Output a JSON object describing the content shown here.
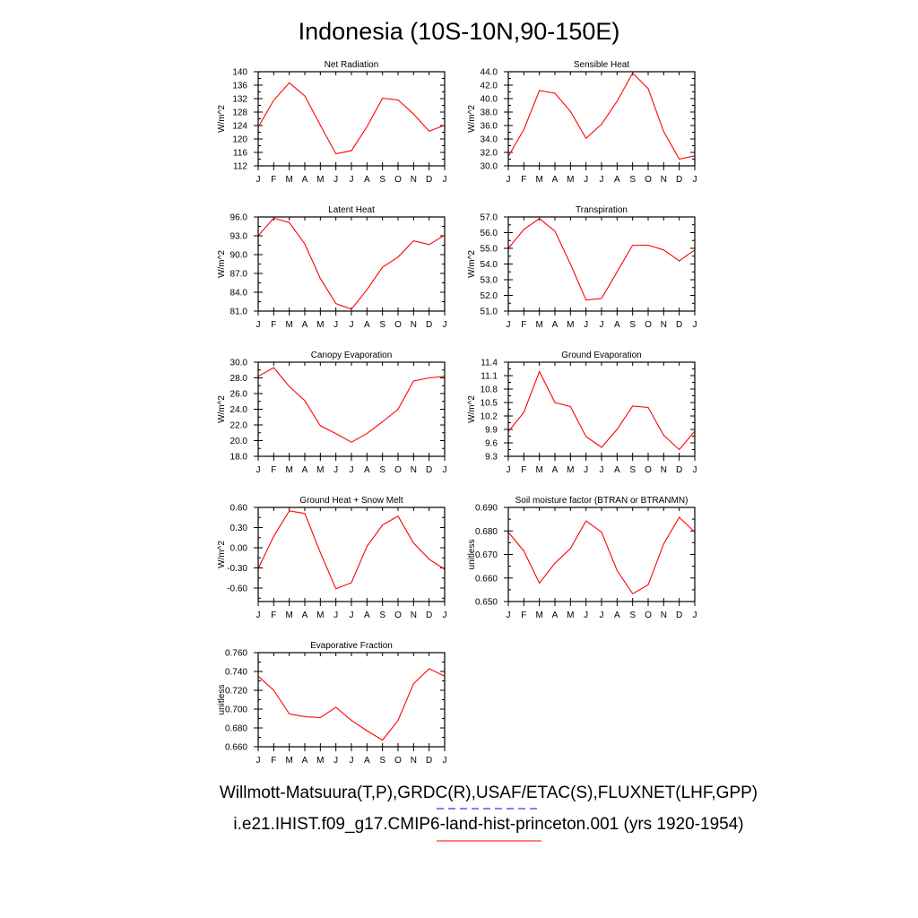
{
  "figure": {
    "title": "Indonesia (10S-10N,90-150E)",
    "legend": [
      {
        "text": "Willmott-Matsuura(T,P),GRDC(R),USAF/ETAC(S),FLUXNET(LHF,GPP)",
        "color": "#0000ff",
        "style": "dashed"
      },
      {
        "text": "i.e21.IHIST.f09_g17.CMIP6-land-hist-princeton.001 (yrs 1920-1954)",
        "color": "#ff0000",
        "style": "solid"
      }
    ]
  },
  "chart_data": [
    {
      "type": "line",
      "title": "Net Radiation",
      "ylabel": "W/m^2",
      "categories": [
        "J",
        "F",
        "M",
        "A",
        "M",
        "J",
        "J",
        "A",
        "S",
        "O",
        "N",
        "D",
        "J"
      ],
      "ylim": [
        112,
        140
      ],
      "yticks": [
        "140",
        "136",
        "132",
        "128",
        "124",
        "120",
        "116",
        "112"
      ],
      "series": [
        {
          "color": "#ff0000",
          "values": [
            123.5,
            131.5,
            136.7,
            132.8,
            124.1,
            115.6,
            116.5,
            123.6,
            132.1,
            131.6,
            127.4,
            122.3,
            124.1
          ]
        }
      ]
    },
    {
      "type": "line",
      "title": "Sensible Heat",
      "ylabel": "W/m^2",
      "categories": [
        "J",
        "F",
        "M",
        "A",
        "M",
        "J",
        "J",
        "A",
        "S",
        "O",
        "N",
        "D",
        "J"
      ],
      "ylim": [
        30,
        44
      ],
      "yticks": [
        "44.0",
        "42.0",
        "40.0",
        "38.0",
        "36.0",
        "34.0",
        "32.0",
        "30.0"
      ],
      "series": [
        {
          "color": "#ff0000",
          "values": [
            31.4,
            35.4,
            41.2,
            40.8,
            38.1,
            34.1,
            36.2,
            39.6,
            43.8,
            41.5,
            35.1,
            31.0,
            31.5
          ]
        }
      ]
    },
    {
      "type": "line",
      "title": "Latent Heat",
      "ylabel": "W/m^2",
      "categories": [
        "J",
        "F",
        "M",
        "A",
        "M",
        "J",
        "J",
        "A",
        "S",
        "O",
        "N",
        "D",
        "J"
      ],
      "ylim": [
        81,
        96
      ],
      "yticks": [
        "96.0",
        "93.0",
        "90.0",
        "87.0",
        "84.0",
        "81.0"
      ],
      "series": [
        {
          "color": "#ff0000",
          "values": [
            93.0,
            95.8,
            95.1,
            91.7,
            86.2,
            82.2,
            81.3,
            84.4,
            88.0,
            89.6,
            92.2,
            91.6,
            93.1
          ]
        }
      ]
    },
    {
      "type": "line",
      "title": "Transpiration",
      "ylabel": "W/m^2",
      "categories": [
        "J",
        "F",
        "M",
        "A",
        "M",
        "J",
        "J",
        "A",
        "S",
        "O",
        "N",
        "D",
        "J"
      ],
      "ylim": [
        51,
        57
      ],
      "yticks": [
        "57.0",
        "56.0",
        "55.0",
        "54.0",
        "53.0",
        "52.0",
        "51.0"
      ],
      "series": [
        {
          "color": "#ff0000",
          "values": [
            55.0,
            56.2,
            56.9,
            56.1,
            54.0,
            51.7,
            51.8,
            53.5,
            55.2,
            55.2,
            54.9,
            54.2,
            54.9
          ]
        }
      ]
    },
    {
      "type": "line",
      "title": "Canopy Evaporation",
      "ylabel": "W/m^2",
      "categories": [
        "J",
        "F",
        "M",
        "A",
        "M",
        "J",
        "J",
        "A",
        "S",
        "O",
        "N",
        "D",
        "J"
      ],
      "ylim": [
        18,
        30
      ],
      "yticks": [
        "30.0",
        "28.0",
        "26.0",
        "24.0",
        "22.0",
        "20.0",
        "18.0"
      ],
      "series": [
        {
          "color": "#ff0000",
          "values": [
            28.2,
            29.3,
            26.9,
            25.1,
            21.9,
            20.9,
            19.8,
            20.9,
            22.4,
            24.0,
            27.6,
            28.0,
            28.2
          ]
        }
      ]
    },
    {
      "type": "line",
      "title": "Ground Evaporation",
      "ylabel": "W/m^2",
      "categories": [
        "J",
        "F",
        "M",
        "A",
        "M",
        "J",
        "J",
        "A",
        "S",
        "O",
        "N",
        "D",
        "J"
      ],
      "ylim": [
        9.3,
        11.4
      ],
      "yticks": [
        "11.4",
        "11.1",
        "10.8",
        "10.5",
        "10.2",
        "9.9",
        "9.6",
        "9.3"
      ],
      "series": [
        {
          "color": "#ff0000",
          "values": [
            9.85,
            10.28,
            11.19,
            10.5,
            10.41,
            9.74,
            9.5,
            9.9,
            10.42,
            10.39,
            9.77,
            9.45,
            9.86
          ]
        }
      ]
    },
    {
      "type": "line",
      "title": "Ground Heat + Snow Melt",
      "ylabel": "W/m^2",
      "categories": [
        "J",
        "F",
        "M",
        "A",
        "M",
        "J",
        "J",
        "A",
        "S",
        "O",
        "N",
        "D",
        "J"
      ],
      "ylim": [
        -0.8,
        0.6
      ],
      "yticks": [
        "0.60",
        "0.30",
        "0.00",
        "-0.30",
        "-0.60"
      ],
      "series": [
        {
          "color": "#ff0000",
          "values": [
            -0.31,
            0.17,
            0.55,
            0.51,
            -0.07,
            -0.61,
            -0.52,
            0.02,
            0.34,
            0.47,
            0.07,
            -0.17,
            -0.32
          ]
        }
      ]
    },
    {
      "type": "line",
      "title": "Soil moisture factor (BTRAN or BTRANMN)",
      "ylabel": "unitless",
      "categories": [
        "J",
        "F",
        "M",
        "A",
        "M",
        "J",
        "J",
        "A",
        "S",
        "O",
        "N",
        "D",
        "J"
      ],
      "ylim": [
        0.65,
        0.69
      ],
      "yticks": [
        "0.690",
        "0.680",
        "0.670",
        "0.660",
        "0.650"
      ],
      "series": [
        {
          "color": "#ff0000",
          "values": [
            0.6795,
            0.6715,
            0.6578,
            0.6663,
            0.6725,
            0.6843,
            0.6795,
            0.6632,
            0.6533,
            0.6571,
            0.6745,
            0.6858,
            0.6795
          ]
        }
      ]
    },
    {
      "type": "line",
      "title": "Evaporative Fraction",
      "ylabel": "unitless",
      "categories": [
        "J",
        "F",
        "M",
        "A",
        "M",
        "J",
        "J",
        "A",
        "S",
        "O",
        "N",
        "D",
        "J"
      ],
      "ylim": [
        0.66,
        0.76
      ],
      "yticks": [
        "0.760",
        "0.740",
        "0.720",
        "0.700",
        "0.680",
        "0.660"
      ],
      "series": [
        {
          "color": "#ff0000",
          "values": [
            0.735,
            0.72,
            0.695,
            0.692,
            0.691,
            0.702,
            0.688,
            0.677,
            0.667,
            0.688,
            0.727,
            0.743,
            0.735
          ]
        }
      ]
    }
  ]
}
